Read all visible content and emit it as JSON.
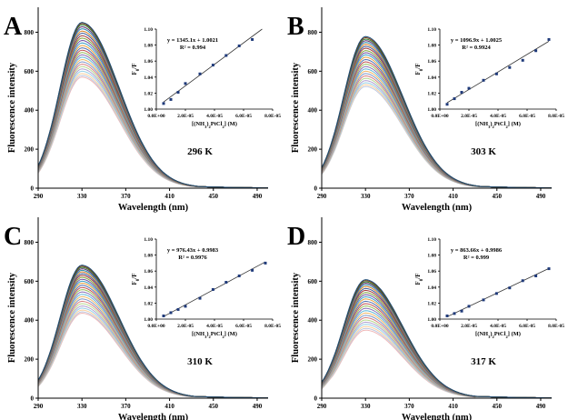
{
  "figure": {
    "panels": [
      "A",
      "B",
      "C",
      "D"
    ]
  },
  "chart_data": [
    {
      "panel": "A",
      "type": "line",
      "temperature_label": "296 K",
      "xlabel": "Wavelength (nm)",
      "ylabel": "Fluorescence intensity",
      "xlim": [
        290,
        500
      ],
      "ylim": [
        0,
        900
      ],
      "xticks": [
        290,
        330,
        370,
        410,
        450,
        490
      ],
      "yticks": [
        0,
        200,
        400,
        600,
        800
      ],
      "peak_wavelength": 330,
      "spectra_peak_intensities": [
        850,
        845,
        838,
        828,
        818,
        806,
        795,
        782,
        770,
        758,
        745,
        732,
        720,
        708,
        696,
        684,
        672,
        660,
        648,
        636,
        624,
        612,
        600,
        588,
        578,
        570
      ],
      "inset": {
        "type": "scatter",
        "xlabel": "[(NH3)2PtCl2] (M)",
        "ylabel": "F0/F",
        "xlim": [
          0,
          8e-05
        ],
        "ylim": [
          1.0,
          1.1
        ],
        "xticks": [
          "0.0E+00",
          "2.0E-05",
          "4.0E-05",
          "6.0E-05",
          "8.0E-05"
        ],
        "yticks": [
          "1.00",
          "1.02",
          "1.04",
          "1.06",
          "1.08",
          "1.10"
        ],
        "equation": "y = 1345.1x + 1.0021",
        "r_squared": "R² = 0.994",
        "slope": 1345.1,
        "intercept": 1.0021,
        "x": [
          5e-06,
          1e-05,
          1.5e-05,
          2e-05,
          3e-05,
          3.9e-05,
          4.8e-05,
          5.7e-05,
          6.6e-05
        ],
        "y": [
          1.007,
          1.012,
          1.021,
          1.032,
          1.044,
          1.055,
          1.067,
          1.079,
          1.087
        ],
        "fit_range": [
          5e-06,
          8e-05
        ]
      }
    },
    {
      "panel": "B",
      "type": "line",
      "temperature_label": "303 K",
      "xlabel": "Wavelength (nm)",
      "ylabel": "Fluorescence intensity",
      "xlim": [
        290,
        500
      ],
      "ylim": [
        0,
        900
      ],
      "xticks": [
        290,
        330,
        370,
        410,
        450,
        490
      ],
      "yticks": [
        0,
        200,
        400,
        600,
        800
      ],
      "peak_wavelength": 330,
      "spectra_peak_intensities": [
        778,
        772,
        765,
        757,
        748,
        738,
        728,
        718,
        706,
        695,
        684,
        672,
        660,
        648,
        636,
        624,
        612,
        600,
        588,
        576,
        564,
        552,
        541,
        531,
        522
      ],
      "inset": {
        "type": "scatter",
        "xlabel": "[(NH3)2PtCl2] (M)",
        "ylabel": "F0/F",
        "xlim": [
          0,
          8e-05
        ],
        "ylim": [
          1.0,
          1.1
        ],
        "xticks": [
          "0.0E+00",
          "2.0E-05",
          "4.0E-05",
          "6.0E-05",
          "8.0E-05"
        ],
        "yticks": [
          "1.00",
          "1.02",
          "1.04",
          "1.06",
          "1.08",
          "1.10"
        ],
        "equation": "y = 1096.9x + 1.0025",
        "r_squared": "R² = 0.9924",
        "slope": 1096.9,
        "intercept": 1.0025,
        "x": [
          5e-06,
          1e-05,
          1.5e-05,
          2e-05,
          3e-05,
          3.9e-05,
          4.8e-05,
          5.7e-05,
          6.6e-05,
          7.5e-05
        ],
        "y": [
          1.006,
          1.013,
          1.021,
          1.026,
          1.036,
          1.044,
          1.052,
          1.061,
          1.073,
          1.087
        ],
        "fit_range": [
          5e-06,
          7.5e-05
        ]
      }
    },
    {
      "panel": "C",
      "type": "line",
      "temperature_label": "310 K",
      "xlabel": "Wavelength (nm)",
      "ylabel": "Fluorescence intensity",
      "xlim": [
        290,
        500
      ],
      "ylim": [
        0,
        900
      ],
      "xticks": [
        290,
        330,
        370,
        410,
        450,
        490
      ],
      "yticks": [
        0,
        200,
        400,
        600,
        800
      ],
      "peak_wavelength": 330,
      "spectra_peak_intensities": [
        682,
        677,
        671,
        664,
        656,
        648,
        639,
        630,
        620,
        610,
        600,
        590,
        579,
        568,
        557,
        545,
        533,
        521,
        509,
        497,
        485,
        473,
        462,
        452,
        443,
        436
      ],
      "inset": {
        "type": "scatter",
        "xlabel": "[(NH3)2PtCl2] (M)",
        "ylabel": "F0/F",
        "xlim": [
          0,
          8e-05
        ],
        "ylim": [
          1.0,
          1.1
        ],
        "xticks": [
          "0.0E+00",
          "2.0E-05",
          "4.0E-05",
          "6.0E-05",
          "8.0E-05"
        ],
        "yticks": [
          "1.00",
          "1.02",
          "1.04",
          "1.06",
          "1.08",
          "1.10"
        ],
        "equation": "y = 976.43x + 0.9983",
        "r_squared": "R² = 0.9976",
        "slope": 976.43,
        "intercept": 0.9983,
        "x": [
          5e-06,
          1e-05,
          1.5e-05,
          2e-05,
          3e-05,
          3.9e-05,
          4.8e-05,
          5.7e-05,
          6.6e-05,
          7.5e-05
        ],
        "y": [
          1.004,
          1.008,
          1.012,
          1.016,
          1.026,
          1.037,
          1.046,
          1.054,
          1.061,
          1.07
        ],
        "fit_range": [
          5e-06,
          7.5e-05
        ]
      }
    },
    {
      "panel": "D",
      "type": "line",
      "temperature_label": "317 K",
      "xlabel": "Wavelength (nm)",
      "ylabel": "Fluorescence intensity",
      "xlim": [
        290,
        500
      ],
      "ylim": [
        0,
        900
      ],
      "xticks": [
        290,
        330,
        370,
        410,
        450,
        490
      ],
      "yticks": [
        0,
        200,
        400,
        600,
        800
      ],
      "peak_wavelength": 330,
      "spectra_peak_intensities": [
        608,
        603,
        597,
        590,
        582,
        573,
        563,
        553,
        542,
        531,
        520,
        509,
        497,
        485,
        473,
        461,
        449,
        437,
        425,
        413,
        401,
        390,
        379,
        368,
        358,
        349
      ],
      "inset": {
        "type": "scatter",
        "xlabel": "[(NH3)2PtCl2] (M)",
        "ylabel": "F0/F",
        "xlim": [
          0,
          8e-05
        ],
        "ylim": [
          1.0,
          1.1
        ],
        "xticks": [
          "0.0E+00",
          "2.0E-05",
          "4.0E-05",
          "6.0E-05",
          "8.0E-05"
        ],
        "yticks": [
          "1.00",
          "1.02",
          "1.04",
          "1.06",
          "1.08",
          "1.10"
        ],
        "equation": "y = 863.66x + 0.9986",
        "r_squared": "R² = 0.999",
        "slope": 863.66,
        "intercept": 0.9986,
        "x": [
          5e-06,
          1e-05,
          1.5e-05,
          2e-05,
          3e-05,
          3.9e-05,
          4.8e-05,
          5.7e-05,
          6.6e-05,
          7.5e-05
        ],
        "y": [
          1.004,
          1.007,
          1.01,
          1.016,
          1.024,
          1.032,
          1.039,
          1.048,
          1.054,
          1.063
        ],
        "fit_range": [
          5e-06,
          7.5e-05
        ]
      }
    }
  ],
  "colors": {
    "axis": "#000000",
    "marker": "#1f3a7a",
    "fit_line": "#333333",
    "spectra_palette": [
      "#1f4e79",
      "#7a3b10",
      "#2e7d32",
      "#5b2c6f",
      "#2a8bb0",
      "#d9822b",
      "#3d5a99",
      "#a33b3b",
      "#7fa33b",
      "#6f4fa0",
      "#3aa0c8",
      "#e8a040",
      "#4f6fb0",
      "#c05050",
      "#98c060",
      "#8a70b8",
      "#60b8d8",
      "#f0b868",
      "#8098c8",
      "#d88080",
      "#b8d890",
      "#b0a0d0",
      "#98d0e8",
      "#f8d0a0",
      "#c0c8e0",
      "#f0b8b8"
    ]
  }
}
